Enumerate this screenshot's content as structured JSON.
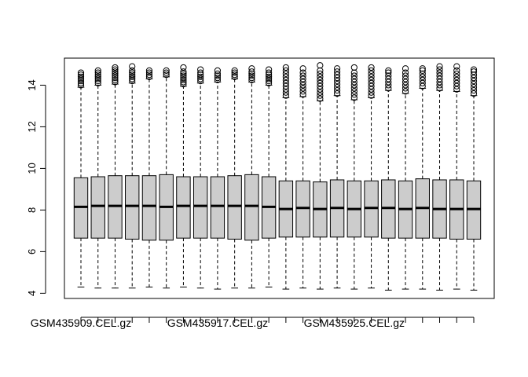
{
  "chart_data": {
    "type": "boxplot",
    "title": "",
    "xlabel": "",
    "ylabel": "",
    "ylim": [
      3.75,
      15.3
    ],
    "yticks": [
      4,
      6,
      8,
      10,
      12,
      14
    ],
    "printed_x_labels": [
      "GSM435909.CEL.gz",
      "GSM435917.CEL.gz",
      "GSM435925.CEL.gz"
    ],
    "printed_x_label_positions": [
      1,
      9,
      17
    ],
    "box_fill": "#cccccc",
    "boxes": [
      {
        "position": 1,
        "whisker_low": 4.3,
        "q1": 6.65,
        "median": 8.15,
        "q3": 9.55,
        "whisker_high": 13.9,
        "outliers": [
          14.0,
          14.1,
          14.2,
          14.3,
          14.4,
          14.5,
          14.6
        ]
      },
      {
        "position": 2,
        "whisker_low": 4.25,
        "q1": 6.65,
        "median": 8.2,
        "q3": 9.6,
        "whisker_high": 14.0,
        "outliers": [
          14.1,
          14.2,
          14.3,
          14.4,
          14.5,
          14.6,
          14.7
        ]
      },
      {
        "position": 3,
        "whisker_low": 4.25,
        "q1": 6.65,
        "median": 8.2,
        "q3": 9.65,
        "whisker_high": 14.05,
        "outliers": [
          14.15,
          14.25,
          14.35,
          14.45,
          14.55,
          14.65,
          14.75,
          14.85
        ]
      },
      {
        "position": 4,
        "whisker_low": 4.25,
        "q1": 6.6,
        "median": 8.2,
        "q3": 9.65,
        "whisker_high": 14.1,
        "outliers": [
          14.2,
          14.3,
          14.4,
          14.5,
          14.6,
          14.7,
          14.9
        ]
      },
      {
        "position": 5,
        "whisker_low": 4.3,
        "q1": 6.55,
        "median": 8.2,
        "q3": 9.65,
        "whisker_high": 14.3,
        "outliers": [
          14.4,
          14.5,
          14.6,
          14.7
        ]
      },
      {
        "position": 6,
        "whisker_low": 4.25,
        "q1": 6.55,
        "median": 8.15,
        "q3": 9.7,
        "whisker_high": 14.4,
        "outliers": [
          14.5,
          14.6,
          14.7
        ]
      },
      {
        "position": 7,
        "whisker_low": 4.3,
        "q1": 6.65,
        "median": 8.2,
        "q3": 9.6,
        "whisker_high": 13.95,
        "outliers": [
          14.05,
          14.15,
          14.25,
          14.35,
          14.45,
          14.55,
          14.65,
          14.85
        ]
      },
      {
        "position": 8,
        "whisker_low": 4.25,
        "q1": 6.65,
        "median": 8.2,
        "q3": 9.6,
        "whisker_high": 14.1,
        "outliers": [
          14.2,
          14.3,
          14.4,
          14.5,
          14.6,
          14.75
        ]
      },
      {
        "position": 9,
        "whisker_low": 4.2,
        "q1": 6.65,
        "median": 8.2,
        "q3": 9.6,
        "whisker_high": 14.15,
        "outliers": [
          14.25,
          14.35,
          14.45,
          14.55,
          14.7
        ]
      },
      {
        "position": 10,
        "whisker_low": 4.25,
        "q1": 6.6,
        "median": 8.2,
        "q3": 9.65,
        "whisker_high": 14.3,
        "outliers": [
          14.4,
          14.5,
          14.6,
          14.7
        ]
      },
      {
        "position": 11,
        "whisker_low": 4.25,
        "q1": 6.55,
        "median": 8.2,
        "q3": 9.7,
        "whisker_high": 14.15,
        "outliers": [
          14.25,
          14.35,
          14.45,
          14.55,
          14.65,
          14.8
        ]
      },
      {
        "position": 12,
        "whisker_low": 4.3,
        "q1": 6.65,
        "median": 8.15,
        "q3": 9.6,
        "whisker_high": 14.0,
        "outliers": [
          14.1,
          14.2,
          14.3,
          14.4,
          14.5,
          14.6,
          14.75
        ]
      },
      {
        "position": 13,
        "whisker_low": 4.2,
        "q1": 6.7,
        "median": 8.05,
        "q3": 9.4,
        "whisker_high": 13.4,
        "outliers": [
          13.5,
          13.65,
          13.8,
          13.95,
          14.1,
          14.25,
          14.4,
          14.55,
          14.7,
          14.85
        ]
      },
      {
        "position": 14,
        "whisker_low": 4.25,
        "q1": 6.7,
        "median": 8.1,
        "q3": 9.4,
        "whisker_high": 13.45,
        "outliers": [
          13.55,
          13.7,
          13.85,
          14.0,
          14.15,
          14.3,
          14.45,
          14.6,
          14.8
        ]
      },
      {
        "position": 15,
        "whisker_low": 4.2,
        "q1": 6.7,
        "median": 8.05,
        "q3": 9.35,
        "whisker_high": 13.25,
        "outliers": [
          13.35,
          13.5,
          13.65,
          13.8,
          13.95,
          14.1,
          14.25,
          14.4,
          14.55,
          14.7,
          14.95
        ]
      },
      {
        "position": 16,
        "whisker_low": 4.25,
        "q1": 6.7,
        "median": 8.1,
        "q3": 9.45,
        "whisker_high": 13.5,
        "outliers": [
          13.6,
          13.75,
          13.9,
          14.05,
          14.2,
          14.35,
          14.5,
          14.65,
          14.8
        ]
      },
      {
        "position": 17,
        "whisker_low": 4.2,
        "q1": 6.7,
        "median": 8.05,
        "q3": 9.4,
        "whisker_high": 13.3,
        "outliers": [
          13.4,
          13.55,
          13.7,
          13.85,
          14.0,
          14.15,
          14.3,
          14.45,
          14.6,
          14.85
        ]
      },
      {
        "position": 18,
        "whisker_low": 4.25,
        "q1": 6.7,
        "median": 8.1,
        "q3": 9.4,
        "whisker_high": 13.4,
        "outliers": [
          13.5,
          13.65,
          13.8,
          13.95,
          14.1,
          14.25,
          14.4,
          14.55,
          14.7,
          14.85
        ]
      },
      {
        "position": 19,
        "whisker_low": 4.15,
        "q1": 6.65,
        "median": 8.1,
        "q3": 9.45,
        "whisker_high": 13.75,
        "outliers": [
          13.85,
          14.0,
          14.15,
          14.3,
          14.45,
          14.6,
          14.7
        ]
      },
      {
        "position": 20,
        "whisker_low": 4.2,
        "q1": 6.65,
        "median": 8.05,
        "q3": 9.4,
        "whisker_high": 13.6,
        "outliers": [
          13.7,
          13.85,
          14.0,
          14.15,
          14.3,
          14.45,
          14.6,
          14.8
        ]
      },
      {
        "position": 21,
        "whisker_low": 4.2,
        "q1": 6.65,
        "median": 8.1,
        "q3": 9.5,
        "whisker_high": 13.85,
        "outliers": [
          13.95,
          14.1,
          14.25,
          14.4,
          14.55,
          14.7,
          14.8
        ]
      },
      {
        "position": 22,
        "whisker_low": 4.15,
        "q1": 6.65,
        "median": 8.05,
        "q3": 9.45,
        "whisker_high": 13.75,
        "outliers": [
          13.85,
          14.0,
          14.15,
          14.3,
          14.45,
          14.6,
          14.75,
          14.9
        ]
      },
      {
        "position": 23,
        "whisker_low": 4.2,
        "q1": 6.6,
        "median": 8.05,
        "q3": 9.45,
        "whisker_high": 13.7,
        "outliers": [
          13.8,
          13.95,
          14.1,
          14.25,
          14.4,
          14.55,
          14.7,
          14.9
        ]
      },
      {
        "position": 24,
        "whisker_low": 4.15,
        "q1": 6.6,
        "median": 8.05,
        "q3": 9.4,
        "whisker_high": 13.5,
        "outliers": [
          13.6,
          13.75,
          13.9,
          14.05,
          14.2,
          14.35,
          14.5,
          14.65,
          14.75
        ]
      }
    ]
  }
}
